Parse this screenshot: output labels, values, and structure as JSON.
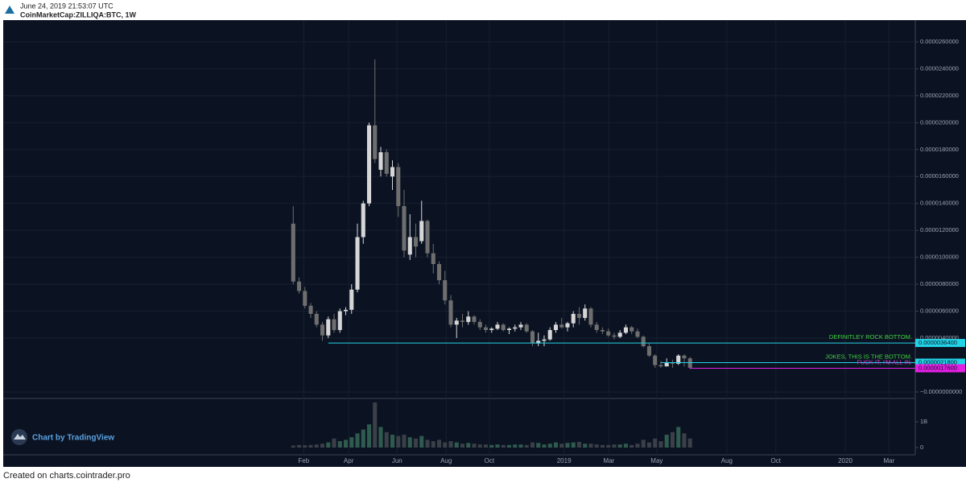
{
  "header": {
    "timestamp": "June 24, 2019 21:53:07 UTC",
    "symbol": "CoinMarketCap:ZILLIQA:BTC, 1W"
  },
  "watermark": "Chart by TradingView",
  "footer": "Created on charts.cointrader.pro",
  "chart_data": {
    "type": "candlestick",
    "up_color": "#d6d6d6",
    "down_color": "#6e6e6e",
    "volume_up_color": "#2f5a4e",
    "volume_down_color": "#3a3f48",
    "grid": true,
    "open": [
      1.25e-05,
      8.2e-06,
      7.5e-06,
      6.4e-06,
      5.8e-06,
      5e-06,
      4.2e-06,
      5.4e-06,
      4.6e-06,
      6e-06,
      6.1e-06,
      7.6e-06,
      1.15e-05,
      1.4e-05,
      1.98e-05,
      1.65e-05,
      1.78e-05,
      1.6e-05,
      1.67e-05,
      1.38e-05,
      1.02e-05,
      1.15e-05,
      1.12e-05,
      1.27e-05,
      1.03e-05,
      9.5e-06,
      8.3e-06,
      6.8e-06,
      5e-06,
      5.3e-06,
      5.2e-06,
      5.6e-06,
      5.2e-06,
      4.8e-06,
      4.6e-06,
      4.7e-06,
      5e-06,
      4.6e-06,
      4.7e-06,
      4.8e-06,
      5e-06,
      4.5e-06,
      3.6e-06,
      3.8e-06,
      3.9e-06,
      4.6e-06,
      5e-06,
      4.8e-06,
      5.1e-06,
      5.8e-06,
      5.5e-06,
      6.2e-06,
      5e-06,
      4.6e-06,
      4.5e-06,
      4.2e-06,
      4.1e-06,
      4.4e-06,
      4.8e-06,
      4.5e-06,
      4.1e-06,
      3.4e-06,
      2.7e-06,
      2e-06,
      1.9e-06,
      2.2e-06,
      2.1e-06,
      2.7e-06,
      2.5e-06
    ],
    "high": [
      1.38e-05,
      8.5e-06,
      7.8e-06,
      6.6e-06,
      6e-06,
      5.2e-06,
      5.6e-06,
      5.8e-06,
      6.2e-06,
      6.3e-06,
      8e-06,
      1.25e-05,
      1.42e-05,
      2e-05,
      2.47e-05,
      1.82e-05,
      1.8e-05,
      1.72e-05,
      1.7e-05,
      1.5e-05,
      1.32e-05,
      1.25e-05,
      1.42e-05,
      1.28e-05,
      1.1e-05,
      9.7e-06,
      9e-06,
      7.2e-06,
      5.5e-06,
      5.8e-06,
      6e-06,
      5.7e-06,
      5.4e-06,
      5e-06,
      4.8e-06,
      5.2e-06,
      5.1e-06,
      4.8e-06,
      5e-06,
      5.2e-06,
      5.1e-06,
      4.6e-06,
      4.4e-06,
      4.2e-06,
      4.8e-06,
      5.2e-06,
      5.5e-06,
      5.2e-06,
      6e-06,
      6.3e-06,
      6.5e-06,
      6.3e-06,
      5.2e-06,
      4.8e-06,
      4.7e-06,
      4.4e-06,
      4.6e-06,
      5e-06,
      4.9e-06,
      4.7e-06,
      4.2e-06,
      3.6e-06,
      2.8e-06,
      2.3e-06,
      2.5e-06,
      2.4e-06,
      2.8e-06,
      2.8e-06,
      2.6e-06
    ],
    "low": [
      8e-06,
      7.3e-06,
      6.2e-06,
      5.5e-06,
      4.8e-06,
      3.8e-06,
      4e-06,
      4.4e-06,
      4.4e-06,
      5.7e-06,
      5.8e-06,
      7.4e-06,
      1.1e-05,
      1.38e-05,
      1.7e-05,
      1.6e-05,
      1.6e-05,
      1.5e-05,
      1.3e-05,
      1e-05,
      9.8e-06,
      1e-05,
      1.1e-05,
      1e-05,
      8.8e-06,
      8e-06,
      6.5e-06,
      4.8e-06,
      4e-06,
      4.8e-06,
      5e-06,
      5e-06,
      4.6e-06,
      4.4e-06,
      4.4e-06,
      4.6e-06,
      4.5e-06,
      4.3e-06,
      4.5e-06,
      4.6e-06,
      4.4e-06,
      3.4e-06,
      3.4e-06,
      3.4e-06,
      3.8e-06,
      4.4e-06,
      4.7e-06,
      4.5e-06,
      4.8e-06,
      5e-06,
      5.3e-06,
      4.8e-06,
      4.4e-06,
      4.3e-06,
      4.1e-06,
      3.9e-06,
      4e-06,
      4.3e-06,
      4.3e-06,
      4e-06,
      3.3e-06,
      2.6e-06,
      1.8e-06,
      1.8e-06,
      1.9e-06,
      1.8e-06,
      2e-06,
      1.9e-06,
      1.7e-06
    ],
    "close": [
      8.2e-06,
      7.5e-06,
      6.4e-06,
      5.8e-06,
      5e-06,
      4.2e-06,
      5.4e-06,
      4.6e-06,
      6e-06,
      6.1e-06,
      7.6e-06,
      1.15e-05,
      1.4e-05,
      1.98e-05,
      1.73e-05,
      1.78e-05,
      1.62e-05,
      1.67e-05,
      1.38e-05,
      1.05e-05,
      1.15e-05,
      1.08e-05,
      1.27e-05,
      1.03e-05,
      9.5e-06,
      8.3e-06,
      6.8e-06,
      5e-06,
      5.3e-06,
      5.2e-06,
      5.6e-06,
      5.2e-06,
      4.8e-06,
      4.6e-06,
      4.7e-06,
      5e-06,
      4.6e-06,
      4.7e-06,
      4.8e-06,
      5e-06,
      4.5e-06,
      3.6e-06,
      3.8e-06,
      3.9e-06,
      4.6e-06,
      5e-06,
      4.8e-06,
      5.1e-06,
      5.8e-06,
      5.5e-06,
      6.2e-06,
      5e-06,
      4.6e-06,
      4.5e-06,
      4.2e-06,
      4.1e-06,
      4.4e-06,
      4.8e-06,
      4.5e-06,
      4.1e-06,
      3.4e-06,
      2.7e-06,
      2e-06,
      1.9e-06,
      2.2e-06,
      2.1e-06,
      2.7e-06,
      2.5e-06,
      1.8e-06
    ],
    "volume": [
      80000000.0,
      100000000.0,
      90000000.0,
      100000000.0,
      120000000.0,
      150000000.0,
      200000000.0,
      350000000.0,
      250000000.0,
      300000000.0,
      400000000.0,
      550000000.0,
      700000000.0,
      900000000.0,
      1750000000.0,
      800000000.0,
      600000000.0,
      500000000.0,
      450000000.0,
      500000000.0,
      400000000.0,
      350000000.0,
      450000000.0,
      300000000.0,
      250000000.0,
      300000000.0,
      200000000.0,
      250000000.0,
      200000000.0,
      150000000.0,
      180000000.0,
      150000000.0,
      120000000.0,
      120000000.0,
      100000000.0,
      120000000.0,
      100000000.0,
      100000000.0,
      120000000.0,
      120000000.0,
      100000000.0,
      200000000.0,
      180000000.0,
      120000000.0,
      150000000.0,
      200000000.0,
      150000000.0,
      180000000.0,
      200000000.0,
      220000000.0,
      150000000.0,
      150000000.0,
      120000000.0,
      100000000.0,
      100000000.0,
      120000000.0,
      120000000.0,
      150000000.0,
      100000000.0,
      150000000.0,
      300000000.0,
      200000000.0,
      350000000.0,
      250000000.0,
      500000000.0,
      600000000.0,
      800000000.0,
      550000000.0,
      350000000.0
    ],
    "xlim": [
      -49.7,
      106.6
    ],
    "xticks": [
      {
        "value": 1.8,
        "label": "Feb"
      },
      {
        "value": 9.5,
        "label": "Apr"
      },
      {
        "value": 17.8,
        "label": "Jun"
      },
      {
        "value": 26.2,
        "label": "Aug"
      },
      {
        "value": 33.6,
        "label": "Oct"
      },
      {
        "value": 46.4,
        "label": "2019"
      },
      {
        "value": 54.1,
        "label": "Mar"
      },
      {
        "value": 62.3,
        "label": "May"
      },
      {
        "value": 74.3,
        "label": "Aug"
      },
      {
        "value": 82.7,
        "label": "Oct"
      },
      {
        "value": 94.6,
        "label": "2020"
      },
      {
        "value": 102.1,
        "label": "Mar"
      }
    ],
    "ylim": [
      -4.8e-07,
      2.761e-05
    ],
    "yticks": [
      {
        "value": 0,
        "label": "−0.0000000000"
      },
      {
        "value": 4e-06,
        "label": "0.0000040000"
      },
      {
        "value": 6e-06,
        "label": "0.0000060000"
      },
      {
        "value": 8e-06,
        "label": "0.0000080000"
      },
      {
        "value": 1e-05,
        "label": "0.0000100000"
      },
      {
        "value": 1.2e-05,
        "label": "0.0000120000"
      },
      {
        "value": 1.4e-05,
        "label": "0.0000140000"
      },
      {
        "value": 1.6e-05,
        "label": "0.0000160000"
      },
      {
        "value": 1.8e-05,
        "label": "0.0000180000"
      },
      {
        "value": 2e-05,
        "label": "0.0000200000"
      },
      {
        "value": 2.2e-05,
        "label": "0.0000220000"
      },
      {
        "value": 2.4e-05,
        "label": "0.0000240000"
      },
      {
        "value": 2.6e-05,
        "label": "0.0000260000"
      }
    ],
    "volume_lim": [
      -280000000.0,
      1906000000.0
    ],
    "volume_ticks": [
      0,
      {
        "value": 1000000000,
        "label": "1B"
      }
    ],
    "annotations": [
      {
        "text": "DEFINITLEY ROCK BOTTOM.",
        "text_color": "#3fd13f",
        "value": 3.64e-06,
        "label": "0.0000036400",
        "color": "#22d3e6",
        "x": 6
      },
      {
        "text": "JOKES, THIS IS THE BOTTOM.",
        "text_color": "#3fd13f",
        "value": 2.18e-06,
        "label": "0.0000021800",
        "color": "#22d3e6",
        "x": 63
      },
      {
        "text": "FUCK IT, I'M ALL IN.",
        "text_color": "#e23be2",
        "value": 1.76e-06,
        "label": "0.0000017600",
        "color": "#e21fe2",
        "x": 68
      }
    ]
  }
}
